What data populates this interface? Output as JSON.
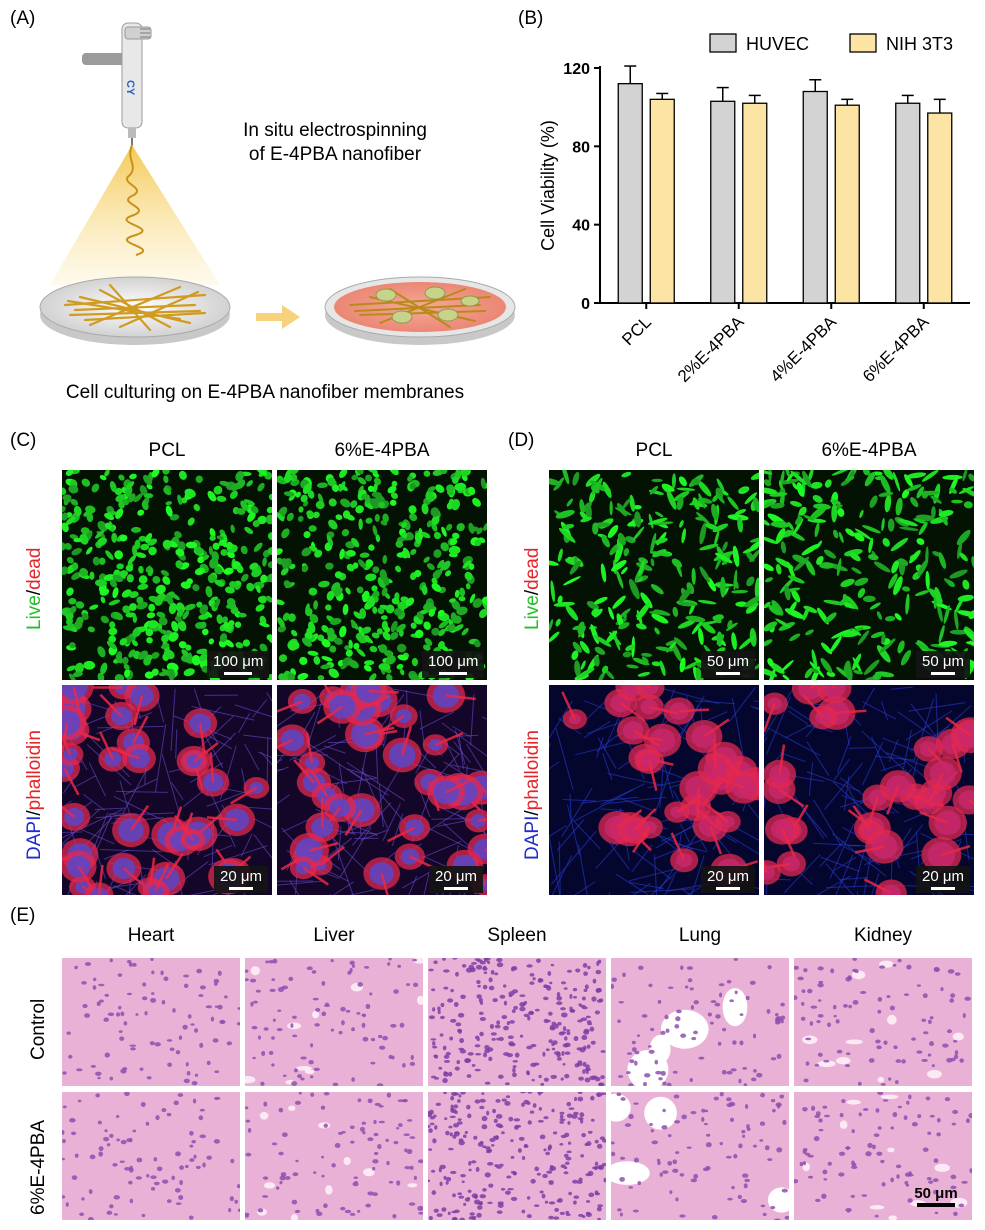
{
  "panel_labels": {
    "a": "(A)",
    "b": "(B)",
    "c": "(C)",
    "d": "(D)",
    "e": "(E)"
  },
  "panel_a": {
    "caption_top_line1": "In situ electrospinning",
    "caption_top_line2": "of E-4PBA nanofiber",
    "caption_bottom": "Cell culturing on E-4PBA nanofiber membranes",
    "device_logo": "CY"
  },
  "panel_c": {
    "col_titles": [
      "PCL",
      "6%E-4PBA"
    ],
    "row_label_live": "Live",
    "row_label_sep": "/",
    "row_label_dead": "dead",
    "row_label_dapi": "DAPI",
    "row_label_phalloidin": "phalloidin",
    "scale_top": "100 μm",
    "scale_bottom": "20 μm"
  },
  "panel_d": {
    "col_titles": [
      "PCL",
      "6%E-4PBA"
    ],
    "row_label_live": "Live",
    "row_label_sep": "/",
    "row_label_dead": "dead",
    "row_label_dapi": "DAPI",
    "row_label_phalloidin": "phalloidin",
    "scale_top": "50 μm",
    "scale_bottom": "20 μm"
  },
  "panel_e": {
    "col_titles": [
      "Heart",
      "Liver",
      "Spleen",
      "Lung",
      "Kidney"
    ],
    "row_titles": [
      "Control",
      "6%E-4PBA"
    ],
    "scale": "50 μm"
  },
  "colors": {
    "huvec": "#d3d3d3",
    "nih3t3": "#fbe4a4",
    "live_green": "#22c02a",
    "dead_red": "#e3262b",
    "dapi_blue": "#1f2bd0",
    "he_pink": "#e9a7d0"
  },
  "chart_data": {
    "type": "bar",
    "title": "",
    "xlabel": "",
    "ylabel": "Cell Viability (%)",
    "ylim": [
      0,
      120
    ],
    "yticks": [
      0,
      40,
      80,
      120
    ],
    "categories": [
      "PCL",
      "2%E-4PBA",
      "4%E-4PBA",
      "6%E-4PBA"
    ],
    "legend_position": "top-right",
    "series": [
      {
        "name": "HUVEC",
        "color": "#d3d3d3",
        "values": [
          112,
          103,
          108,
          102
        ],
        "errors": [
          9,
          7,
          6,
          4
        ]
      },
      {
        "name": "NIH 3T3",
        "color": "#fbe4a4",
        "values": [
          104,
          102,
          101,
          97
        ],
        "errors": [
          3,
          4,
          3,
          7
        ]
      }
    ]
  }
}
